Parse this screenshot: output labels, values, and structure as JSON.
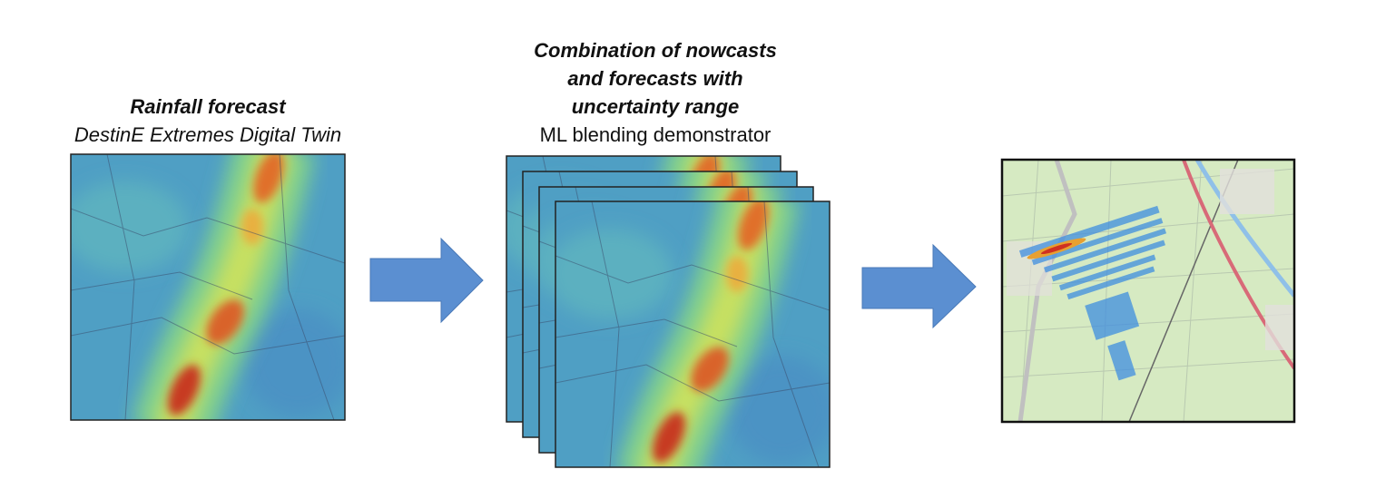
{
  "panels": [
    {
      "title": "Rainfall forecast",
      "subtitle": "DestinE Extremes Digital Twin"
    },
    {
      "title_lines": [
        "Combination of nowcasts",
        "and forecasts with",
        "uncertainty range"
      ],
      "subtitle": "ML blending demonstrator"
    }
  ]
}
